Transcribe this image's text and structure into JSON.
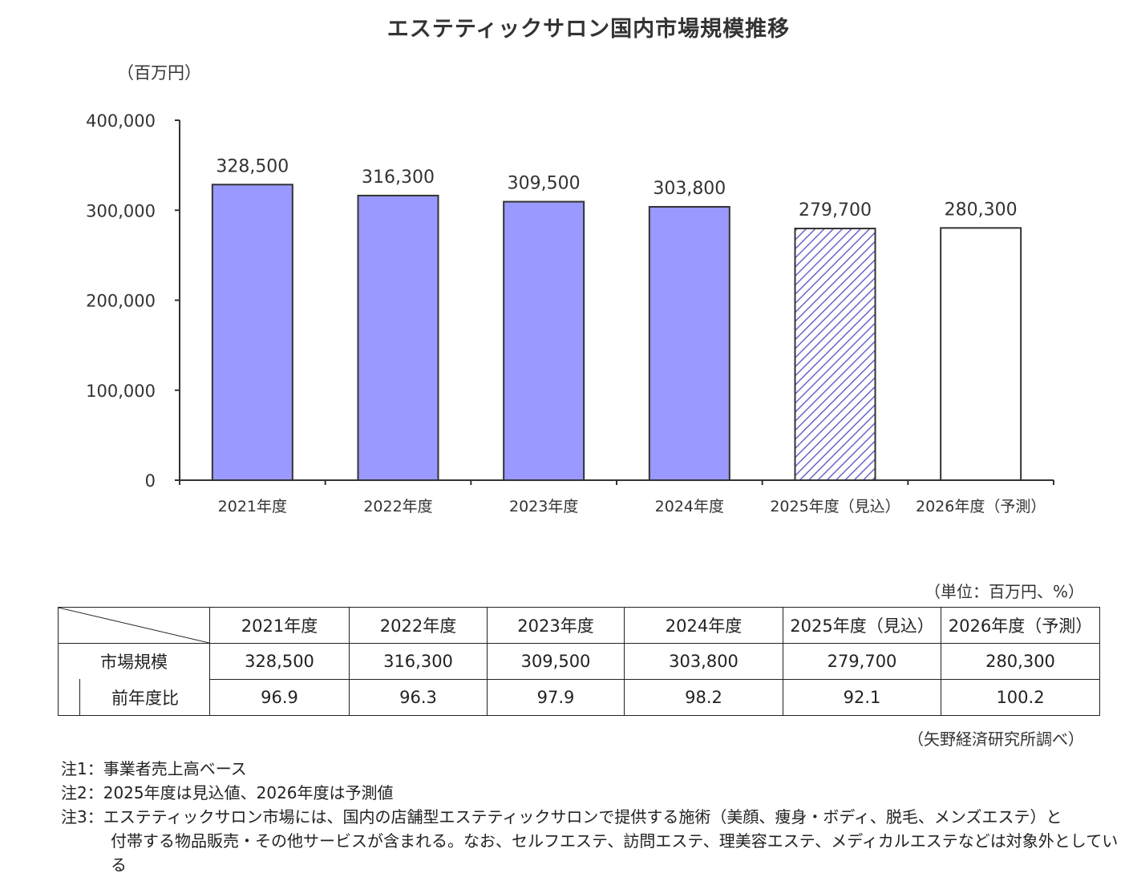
{
  "chart_data": {
    "type": "bar",
    "title": "エステティックサロン国内市場規模推移",
    "ylabel": "（百万円）",
    "ylim": [
      0,
      400000
    ],
    "yticks": [
      0,
      100000,
      200000,
      300000,
      400000
    ],
    "ytick_labels": [
      "0",
      "100,000",
      "200,000",
      "300,000",
      "400,000"
    ],
    "categories": [
      "2021年度",
      "2022年度",
      "2023年度",
      "2024年度",
      "2025年度（見込）",
      "2026年度（予測）"
    ],
    "values": [
      328500,
      316300,
      309500,
      303800,
      279700,
      280300
    ],
    "value_labels": [
      "328,500",
      "316,300",
      "309,500",
      "303,800",
      "279,700",
      "280,300"
    ],
    "bar_styles": [
      "solid",
      "solid",
      "solid",
      "solid",
      "hatched",
      "outline"
    ],
    "colors": {
      "bar_fill": "#9999ff",
      "bar_stroke": "#333333",
      "hatch": "#6666cc"
    },
    "grid": false,
    "legend": "none"
  },
  "table": {
    "unit_note": "（単位：百万円、%）",
    "headers": [
      "2021年度",
      "2022年度",
      "2023年度",
      "2024年度",
      "2025年度（見込）",
      "2026年度（予測）"
    ],
    "rows": [
      {
        "label": "市場規模",
        "values": [
          "328,500",
          "316,300",
          "309,500",
          "303,800",
          "279,700",
          "280,300"
        ]
      },
      {
        "label": "前年度比",
        "values": [
          "96.9",
          "96.3",
          "97.9",
          "98.2",
          "92.1",
          "100.2"
        ]
      }
    ],
    "source": "（矢野経済研究所調べ）"
  },
  "notes": [
    "注1：事業者売上高ベース",
    "注2：2025年度は見込値、2026年度は予測値",
    "注3：エステティックサロン市場には、国内の店舗型エステティックサロンで提供する施術（美顔、痩身・ボディ、脱毛、メンズエステ）と",
    "付帯する物品販売・その他サービスが含まれる。なお、セルフエステ、訪問エステ、理美容エステ、メディカルエステなどは対象外としている"
  ]
}
